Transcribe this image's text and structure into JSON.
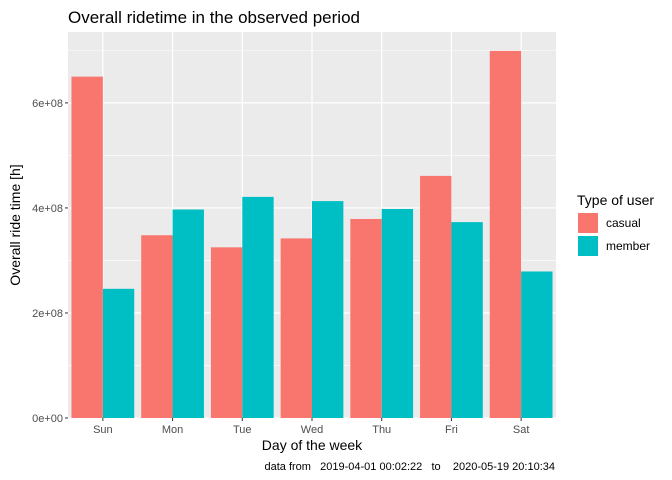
{
  "chart_data": {
    "type": "bar",
    "title": "Overall ridetime in the observed period",
    "xlabel": "Day of the week",
    "ylabel": "Overall ride time [h]",
    "caption": "data from   2019-04-01 00:02:22   to    2020-05-19 20:10:34",
    "categories": [
      "Sun",
      "Mon",
      "Tue",
      "Wed",
      "Thu",
      "Fri",
      "Sat"
    ],
    "series": [
      {
        "name": "casual",
        "color": "#F8766D",
        "values": [
          650000000,
          348000000,
          325000000,
          342000000,
          379000000,
          461000000,
          699000000
        ]
      },
      {
        "name": "member",
        "color": "#00BFC4",
        "values": [
          246000000,
          397000000,
          421000000,
          413000000,
          398000000,
          373000000,
          279000000
        ]
      }
    ],
    "ylim": [
      0,
      735000000
    ],
    "yticks": [
      0,
      200000000,
      400000000,
      600000000
    ],
    "ytick_labels": [
      "0e+00",
      "2e+08",
      "4e+08",
      "6e+08"
    ],
    "legend": {
      "title": "Type of user",
      "position": "right"
    },
    "grid": true,
    "panel_background": "#EBEBEB"
  }
}
